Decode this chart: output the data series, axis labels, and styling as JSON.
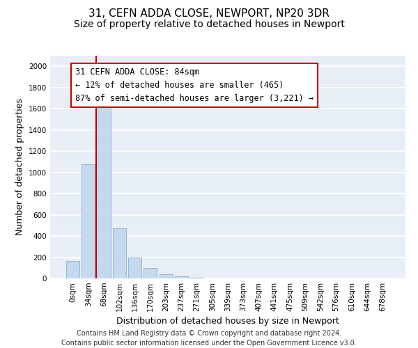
{
  "title1": "31, CEFN ADDA CLOSE, NEWPORT, NP20 3DR",
  "title2": "Size of property relative to detached houses in Newport",
  "xlabel": "Distribution of detached houses by size in Newport",
  "ylabel": "Number of detached properties",
  "categories": [
    "0sqm",
    "34sqm",
    "68sqm",
    "102sqm",
    "136sqm",
    "170sqm",
    "203sqm",
    "237sqm",
    "271sqm",
    "305sqm",
    "339sqm",
    "373sqm",
    "407sqm",
    "441sqm",
    "475sqm",
    "509sqm",
    "542sqm",
    "576sqm",
    "610sqm",
    "644sqm",
    "678sqm"
  ],
  "values": [
    165,
    1075,
    1625,
    475,
    200,
    100,
    38,
    22,
    8,
    3,
    3,
    0,
    0,
    0,
    0,
    0,
    0,
    0,
    0,
    0,
    0
  ],
  "bar_color": "#c5d9ee",
  "bar_edge_color": "#8ab0d0",
  "vline_color": "#cc0000",
  "annotation_line1": "31 CEFN ADDA CLOSE: 84sqm",
  "annotation_line2": "← 12% of detached houses are smaller (465)",
  "annotation_line3": "87% of semi-detached houses are larger (3,221) →",
  "annotation_box_color": "#ffffff",
  "annotation_box_edgecolor": "#cc0000",
  "ylim": [
    0,
    2100
  ],
  "yticks": [
    0,
    200,
    400,
    600,
    800,
    1000,
    1200,
    1400,
    1600,
    1800,
    2000
  ],
  "background_color": "#e8eef6",
  "grid_color": "#ffffff",
  "footer": "Contains HM Land Registry data © Crown copyright and database right 2024.\nContains public sector information licensed under the Open Government Licence v3.0.",
  "title1_fontsize": 11,
  "title2_fontsize": 10,
  "xlabel_fontsize": 9,
  "ylabel_fontsize": 9,
  "tick_fontsize": 7.5,
  "annotation_fontsize": 8.5,
  "footer_fontsize": 7
}
